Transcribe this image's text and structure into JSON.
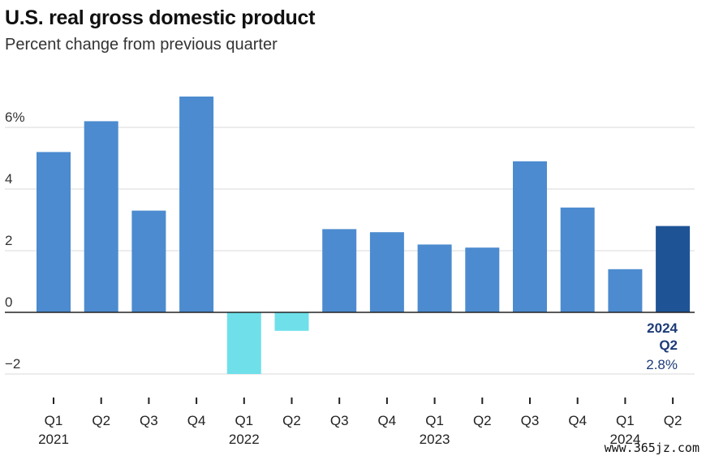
{
  "title": "U.S. real gross domestic product",
  "subtitle": "Percent change from previous quarter",
  "watermark": "www.365jz.com",
  "annotation": {
    "year": "2024",
    "quarter": "Q2",
    "value": "2.8%"
  },
  "colors": {
    "positive": "#4c8bcf",
    "negative": "#6fe0ea",
    "highlight": "#1e5496",
    "grid": "#d9d9d9",
    "axis": "#222222"
  },
  "chart_data": {
    "type": "bar",
    "title": "U.S. real gross domestic product",
    "subtitle": "Percent change from previous quarter",
    "categories": [
      "Q1",
      "Q2",
      "Q3",
      "Q4",
      "Q1",
      "Q2",
      "Q3",
      "Q4",
      "Q1",
      "Q2",
      "Q3",
      "Q4",
      "Q1",
      "Q2"
    ],
    "years": [
      {
        "label": "2021",
        "index": 0
      },
      {
        "label": "2022",
        "index": 4
      },
      {
        "label": "2023",
        "index": 8
      },
      {
        "label": "2024",
        "index": 12
      }
    ],
    "values": [
      5.2,
      6.2,
      3.3,
      7.0,
      -2.0,
      -0.6,
      2.7,
      2.6,
      2.2,
      2.1,
      4.9,
      3.4,
      1.4,
      2.8
    ],
    "yticks": [
      {
        "value": 6,
        "label": "6%"
      },
      {
        "value": 4,
        "label": "4"
      },
      {
        "value": 2,
        "label": "2"
      },
      {
        "value": 0,
        "label": "0"
      },
      {
        "value": -2,
        "label": "−2"
      }
    ],
    "ylim": [
      -2,
      7
    ],
    "highlight_index": 13,
    "grid": true,
    "xlabel": "",
    "ylabel": ""
  }
}
